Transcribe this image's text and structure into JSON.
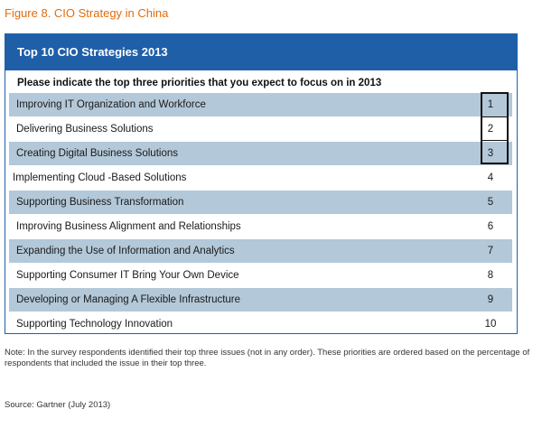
{
  "figure_title": "Figure 8. CIO Strategy in China",
  "panel": {
    "header": "Top 10 CIO Strategies 2013",
    "question": "Please indicate the top three priorities that you expect to focus on in 2013"
  },
  "rows": [
    {
      "label": "Improving IT Organization and Workforce",
      "rank": "1"
    },
    {
      "label": "Delivering Business Solutions",
      "rank": "2"
    },
    {
      "label": "Creating Digital Business Solutions",
      "rank": "3"
    },
    {
      "label": "Implementing Cloud -Based Solutions",
      "rank": "4"
    },
    {
      "label": "Supporting Business Transformation",
      "rank": "5"
    },
    {
      "label": "Improving Business Alignment and Relationships",
      "rank": "6"
    },
    {
      "label": "Expanding the Use of Information and Analytics",
      "rank": "7"
    },
    {
      "label": "Supporting Consumer IT Bring Your Own Device",
      "rank": "8"
    },
    {
      "label": "Developing or Managing A Flexible Infrastructure",
      "rank": "9"
    },
    {
      "label": "Supporting Technology Innovation",
      "rank": "10"
    }
  ],
  "note": "Note: In the survey respondents identified their top three issues (not in any order). These priorities are ordered based on the percentage of respondents that included the issue in their top three.",
  "source": "Source: Gartner (July 2013)",
  "colors": {
    "title_orange": "#e46c0a",
    "header_blue": "#1f5fa8",
    "row_shade": "#b3c8d8"
  }
}
